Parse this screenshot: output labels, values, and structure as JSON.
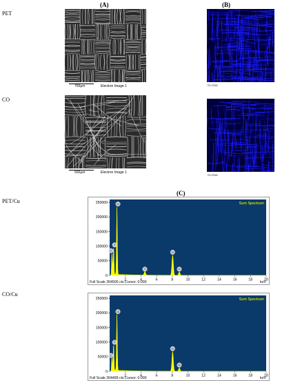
{
  "panels": {
    "a_label": "(A)",
    "b_label": "(B)",
    "c_label": "(C)"
  },
  "samples": {
    "pet": "PET",
    "co": "CO",
    "pet_cu": "PET/Cu",
    "co_cu": "CO/Cu"
  },
  "sem_images": [
    {
      "scale": "700µm",
      "caption": "Electron Image 1"
    },
    {
      "scale": "500µm",
      "caption": "Electron Image 1"
    }
  ],
  "maps": [
    {
      "caption": "Cu Ka1"
    },
    {
      "caption": "Cu Ka1"
    }
  ],
  "colors": {
    "spectrum_bg": "#0a3a6a",
    "spectrum_fill": "#ffff00",
    "map_blue": "#1a1aff",
    "sem_fiber": "#d8d8d8"
  },
  "chart_data": [
    {
      "type": "line",
      "title": "Sum Spectrum",
      "xlabel": "keV",
      "xlim": [
        0,
        20
      ],
      "ylim": [
        0,
        260000
      ],
      "xticks": [
        2,
        4,
        6,
        8,
        10,
        12,
        14,
        16,
        18,
        20
      ],
      "yticks": [
        0,
        50000,
        100000,
        150000,
        200000,
        250000
      ],
      "footer_left": "Full Scale 264500 cts Cursor: 0.000",
      "footer_right": "keV",
      "peaks": [
        {
          "x": 0.3,
          "y": 75000,
          "label": "C"
        },
        {
          "x": 0.5,
          "y": 95000,
          "label": "O"
        },
        {
          "x": 0.93,
          "y": 235000,
          "label": "Cu"
        },
        {
          "x": 4.5,
          "y": 12000,
          "label": "Ti"
        },
        {
          "x": 8.05,
          "y": 70000,
          "label": "Cu"
        },
        {
          "x": 8.9,
          "y": 12000,
          "label": "Cu"
        }
      ]
    },
    {
      "type": "line",
      "title": "Sum Spectrum",
      "xlabel": "keV",
      "xlim": [
        0,
        20
      ],
      "ylim": [
        0,
        260000
      ],
      "xticks": [
        2,
        4,
        6,
        8,
        10,
        12,
        14,
        16,
        18,
        20
      ],
      "yticks": [
        0,
        50000,
        100000,
        150000,
        200000,
        250000
      ],
      "footer_left": "Full Scale 264499 cts Cursor: 0.000",
      "footer_right": "keV",
      "peaks": [
        {
          "x": 0.3,
          "y": 45000,
          "label": "C"
        },
        {
          "x": 0.5,
          "y": 90000,
          "label": "O"
        },
        {
          "x": 0.93,
          "y": 195000,
          "label": "Cu"
        },
        {
          "x": 8.05,
          "y": 68000,
          "label": "Cu"
        },
        {
          "x": 8.9,
          "y": 12000,
          "label": "Cu"
        }
      ]
    }
  ]
}
